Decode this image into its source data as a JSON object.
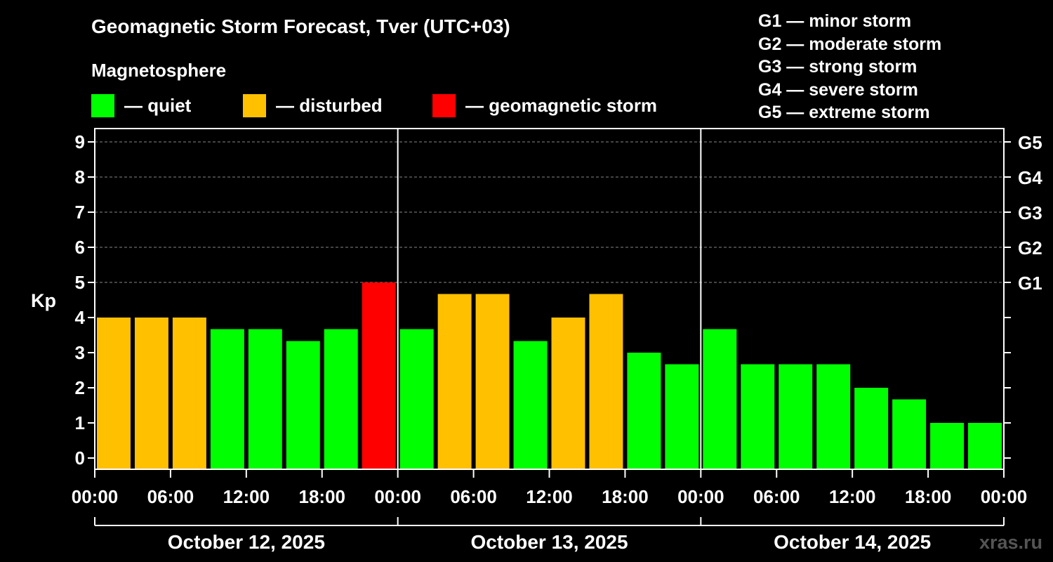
{
  "title": "Geomagnetic Storm Forecast, Tver (UTC+03)",
  "legend": {
    "heading": "Magnetosphere",
    "items": [
      {
        "label": "— quiet",
        "color": "#00ff00"
      },
      {
        "label": "— disturbed",
        "color": "#ffc000"
      },
      {
        "label": "— geomagnetic storm",
        "color": "#ff0000"
      }
    ]
  },
  "storm_scale": [
    "G1 — minor storm",
    "G2 — moderate storm",
    "G3 — strong storm",
    "G4 — severe storm",
    "G5 — extreme storm"
  ],
  "watermark": "xras.ru",
  "chart_data": {
    "type": "bar",
    "ylabel": "Kp",
    "ylim": [
      0,
      9
    ],
    "yticks": [
      "0",
      "1",
      "2",
      "3",
      "4",
      "5",
      "6",
      "7",
      "8",
      "9"
    ],
    "g_levels": [
      {
        "label": "G1",
        "kp": 5
      },
      {
        "label": "G2",
        "kp": 6
      },
      {
        "label": "G3",
        "kp": 7
      },
      {
        "label": "G4",
        "kp": 8
      },
      {
        "label": "G5",
        "kp": 9
      }
    ],
    "xtick_labels": [
      "00:00",
      "06:00",
      "12:00",
      "18:00",
      "00:00",
      "06:00",
      "12:00",
      "18:00",
      "00:00",
      "06:00",
      "12:00",
      "18:00",
      "00:00"
    ],
    "days": [
      "October 12, 2025",
      "October 13, 2025",
      "October 14, 2025"
    ],
    "values": [
      4.0,
      4.0,
      4.0,
      3.67,
      3.67,
      3.33,
      3.67,
      5.0,
      3.67,
      4.67,
      4.67,
      3.33,
      4.0,
      4.67,
      3.0,
      2.67,
      3.67,
      2.67,
      2.67,
      2.67,
      2.0,
      1.67,
      1.0,
      1.0
    ],
    "status": [
      "disturbed",
      "disturbed",
      "disturbed",
      "quiet",
      "quiet",
      "quiet",
      "quiet",
      "storm",
      "quiet",
      "disturbed",
      "disturbed",
      "quiet",
      "disturbed",
      "disturbed",
      "quiet",
      "quiet",
      "quiet",
      "quiet",
      "quiet",
      "quiet",
      "quiet",
      "quiet",
      "quiet",
      "quiet"
    ],
    "colors": {
      "quiet": "#00ff00",
      "disturbed": "#ffc000",
      "storm": "#ff0000"
    }
  }
}
